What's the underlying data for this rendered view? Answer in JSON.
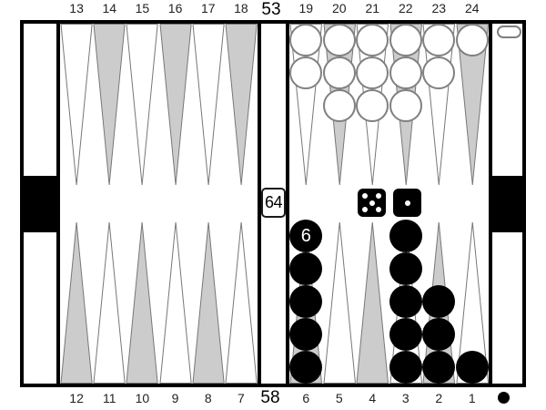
{
  "colors": {
    "frame": "#000000",
    "background": "#ffffff",
    "point_dark_fill": "#cccccc",
    "point_light_fill": "#ffffff",
    "point_outline": "#777777",
    "checker_white_fill": "#ffffff",
    "checker_white_outline": "#808080",
    "checker_black_fill": "#000000",
    "label_color": "#222222"
  },
  "top_row": {
    "pip_count": "53"
  },
  "bottom_row": {
    "pip_count": "58"
  },
  "doubling_cube": {
    "value": "64",
    "location": "bar"
  },
  "dice": {
    "owner": "black",
    "values": [
      5,
      1
    ]
  },
  "borne_off": {
    "white": 1
  },
  "turn_indicator": "black",
  "points": [
    {
      "number": 13,
      "shade": "light",
      "checkers": 0
    },
    {
      "number": 14,
      "shade": "dark",
      "checkers": 0
    },
    {
      "number": 15,
      "shade": "light",
      "checkers": 0
    },
    {
      "number": 16,
      "shade": "dark",
      "checkers": 0
    },
    {
      "number": 17,
      "shade": "light",
      "checkers": 0
    },
    {
      "number": 18,
      "shade": "dark",
      "checkers": 0
    },
    {
      "number": 19,
      "shade": "light",
      "checkers": 2,
      "checker_color": "white"
    },
    {
      "number": 20,
      "shade": "dark",
      "checkers": 3,
      "checker_color": "white"
    },
    {
      "number": 21,
      "shade": "light",
      "checkers": 3,
      "checker_color": "white"
    },
    {
      "number": 22,
      "shade": "dark",
      "checkers": 3,
      "checker_color": "white"
    },
    {
      "number": 23,
      "shade": "light",
      "checkers": 2,
      "checker_color": "white"
    },
    {
      "number": 24,
      "shade": "dark",
      "checkers": 1,
      "checker_color": "white"
    },
    {
      "number": 12,
      "shade": "dark",
      "checkers": 0
    },
    {
      "number": 11,
      "shade": "light",
      "checkers": 0
    },
    {
      "number": 10,
      "shade": "dark",
      "checkers": 0
    },
    {
      "number": 9,
      "shade": "light",
      "checkers": 0
    },
    {
      "number": 8,
      "shade": "dark",
      "checkers": 0
    },
    {
      "number": 7,
      "shade": "light",
      "checkers": 0
    },
    {
      "number": 6,
      "shade": "dark",
      "checkers": 6,
      "checker_color": "black",
      "stack_label": "6"
    },
    {
      "number": 5,
      "shade": "light",
      "checkers": 0
    },
    {
      "number": 4,
      "shade": "dark",
      "checkers": 0
    },
    {
      "number": 3,
      "shade": "light",
      "checkers": 5,
      "checker_color": "black"
    },
    {
      "number": 2,
      "shade": "dark",
      "checkers": 3,
      "checker_color": "black"
    },
    {
      "number": 1,
      "shade": "light",
      "checkers": 1,
      "checker_color": "black"
    }
  ]
}
